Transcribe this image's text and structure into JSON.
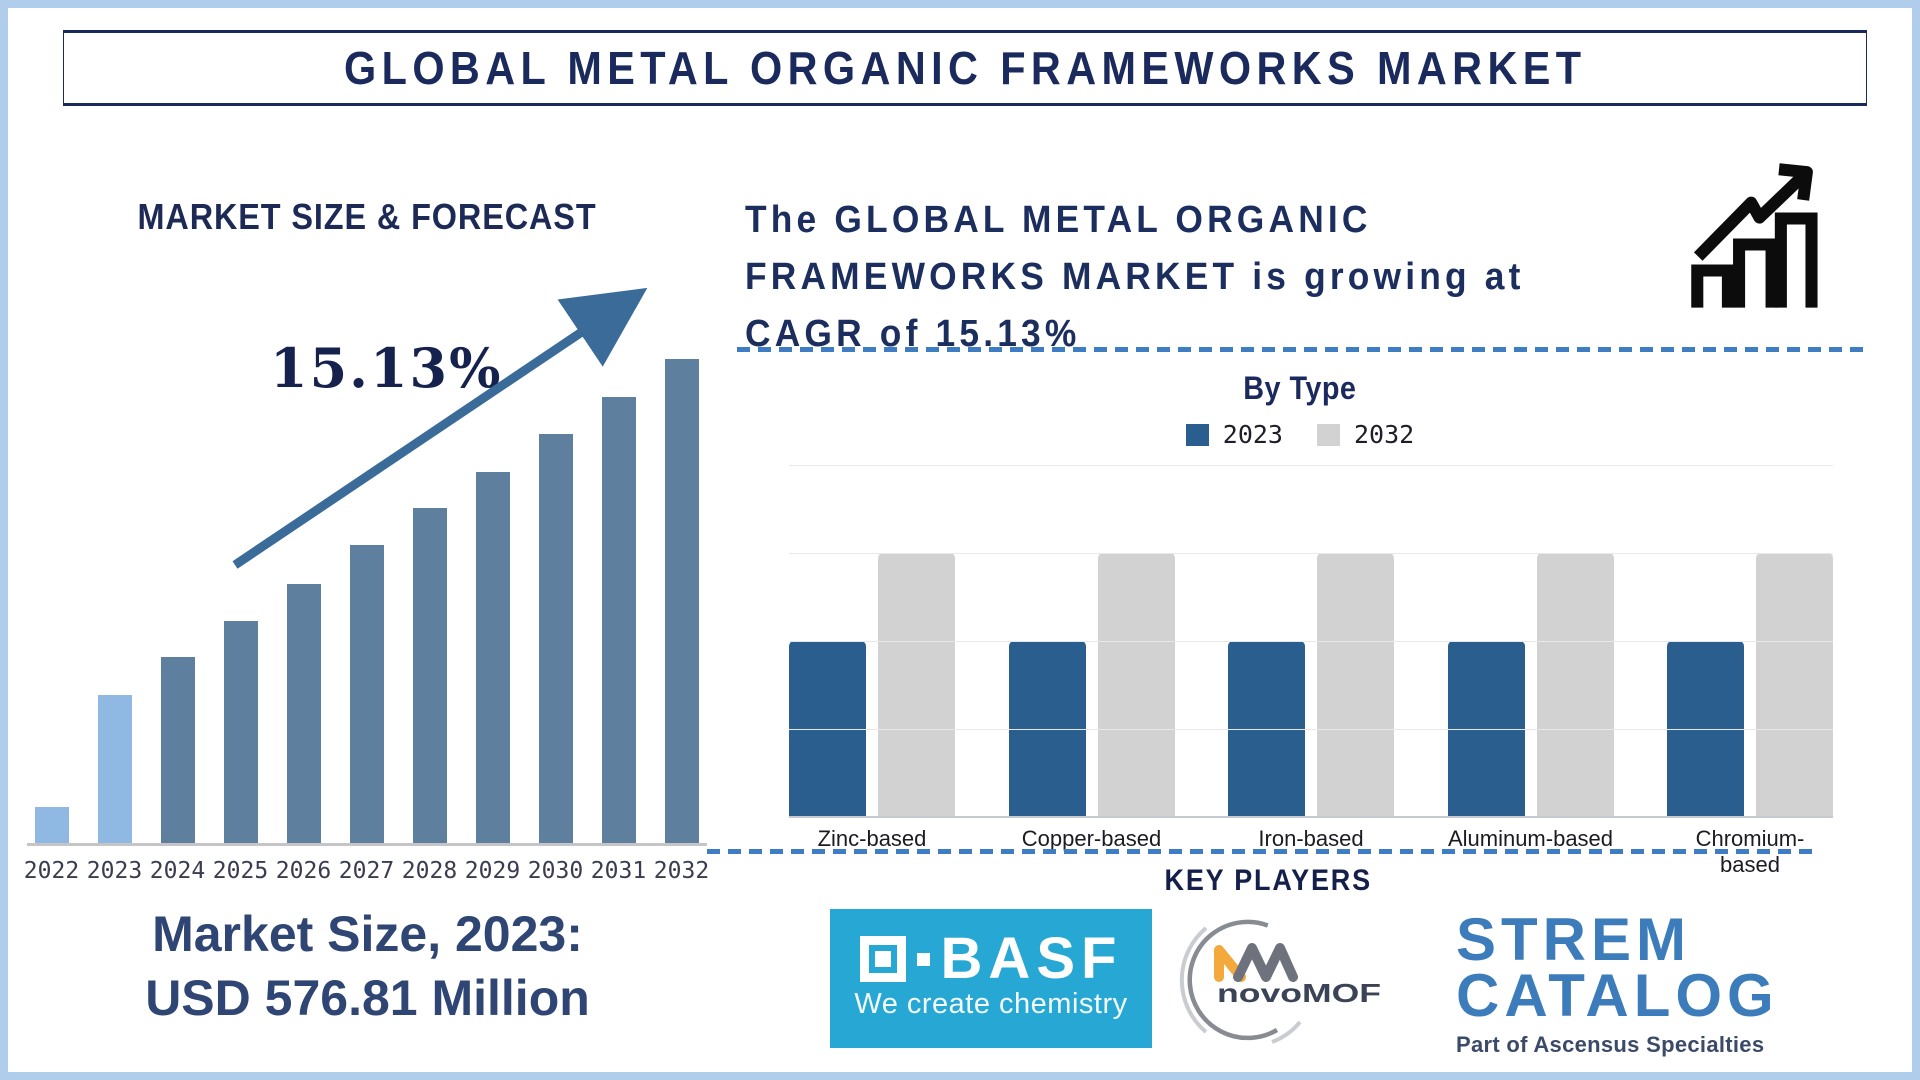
{
  "page": {
    "title": "GLOBAL METAL ORGANIC FRAMEWORKS MARKET"
  },
  "left_panel": {
    "heading": "MARKET SIZE & FORECAST",
    "cagr_label": "15.13%",
    "market_size_line1": "Market Size, 2023:",
    "market_size_line2": "USD 576.81 Million"
  },
  "right_panel": {
    "growth_line1": "The GLOBAL METAL ORGANIC",
    "growth_line2": "FRAMEWORKS MARKET is growing at",
    "growth_line3": "CAGR of 15.13%",
    "by_type_title": "By Type",
    "key_players_heading": "KEY PLAYERS"
  },
  "logos": {
    "basf": {
      "name": "BASF",
      "tagline": "We create chemistry"
    },
    "novomof": {
      "name": "novoMOF"
    },
    "strem": {
      "line1": "STREM",
      "line2": "CATALOG",
      "tagline": "Part of Ascensus Specialties"
    }
  },
  "colors": {
    "navy": "#1B2A5C",
    "steel_blue": "#5E7F9E",
    "light_blue": "#8FB9E2",
    "bar_blue_2023": "#2A5E8E",
    "bar_gray_2032": "#D2D2D3",
    "arrow_blue": "#3A6B99",
    "dashed_line_blue": "#3E7CC4",
    "market_size_text": "#2F4573",
    "basf_cyan": "#27A7D4",
    "strem_blue": "#3D7CBA",
    "novomof_orange": "#F3A93C",
    "page_border": "#B0CDEC"
  },
  "chart_data": [
    {
      "type": "bar",
      "title": "MARKET SIZE & FORECAST",
      "categories": [
        "2022",
        "2023",
        "2024",
        "2025",
        "2026",
        "2027",
        "2028",
        "2029",
        "2030",
        "2031",
        "2032"
      ],
      "values_pct_of_max": [
        7.6,
        30.7,
        38.6,
        46.0,
        53.6,
        61.6,
        69.3,
        76.7,
        84.5,
        92.2,
        100
      ],
      "bar_styles": [
        "light",
        "light",
        "steel",
        "steel",
        "steel",
        "steel",
        "steel",
        "steel",
        "steel",
        "steel",
        "steel"
      ],
      "annotations": {
        "cagr": "15.13%",
        "market_size_2023": "USD 576.81 Million"
      },
      "xlabel": "",
      "ylabel": "",
      "notes": "stylized growth bars, no value axis shown; upward trend arrow labeled 15.13%"
    },
    {
      "type": "bar",
      "title": "By Type",
      "categories": [
        "Zinc-based",
        "Copper-based",
        "Iron-based",
        "Aluminum-based",
        "Chromium-based"
      ],
      "series": [
        {
          "name": "2023",
          "values": [
            2,
            2,
            2,
            2,
            2
          ],
          "color": "#2A5E8E"
        },
        {
          "name": "2032",
          "values": [
            3,
            3,
            3,
            3,
            3
          ],
          "color": "#D2D2D3"
        }
      ],
      "ylim": [
        0,
        4
      ],
      "grid": true,
      "legend_position": "top",
      "notes": "no numeric axis labels shown; values are relative gridline units"
    }
  ]
}
